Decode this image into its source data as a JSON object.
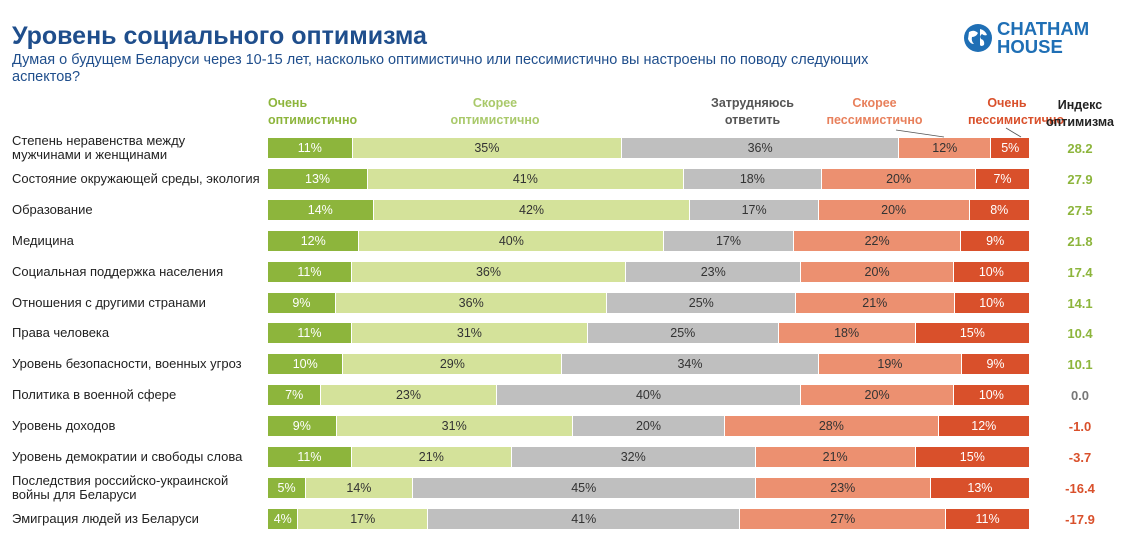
{
  "title": "Уровень социального оптимизма",
  "subtitle": "Думая о будущем Беларуси через 10-15 лет, насколько оптимистично или пессимистично вы настроены по поводу следующих аспектов?",
  "logo": {
    "line1": "CHATHAM",
    "line2": "HOUSE",
    "icon": "globe-icon",
    "color": "#1f6fb5"
  },
  "chart_data": {
    "type": "bar",
    "orientation": "horizontal",
    "stacked": true,
    "normalized": true,
    "series": [
      {
        "name": "Очень оптимистично",
        "color": "#8db53c",
        "values": [
          11,
          13,
          14,
          12,
          11,
          9,
          11,
          10,
          7,
          9,
          11,
          5,
          4
        ]
      },
      {
        "name": "Скорее оптимистично",
        "color": "#d4e29a",
        "values": [
          35,
          41,
          42,
          40,
          36,
          36,
          31,
          29,
          23,
          31,
          21,
          14,
          17
        ]
      },
      {
        "name": "Затрудняюсь ответить",
        "color": "#bfbfbf",
        "values": [
          36,
          18,
          17,
          17,
          23,
          25,
          25,
          34,
          40,
          20,
          32,
          45,
          41
        ]
      },
      {
        "name": "Скорее пессимистично",
        "color": "#ec9070",
        "values": [
          12,
          20,
          20,
          22,
          20,
          21,
          18,
          19,
          20,
          28,
          21,
          23,
          27
        ]
      },
      {
        "name": "Очень пессимистично",
        "color": "#d9502b",
        "values": [
          5,
          7,
          8,
          9,
          10,
          10,
          15,
          9,
          10,
          12,
          15,
          13,
          11
        ]
      }
    ],
    "legend_colors": [
      "#8db53c",
      "#a9c96a",
      "#555555",
      "#e8805c",
      "#d9502b"
    ],
    "categories": [
      "Степень неравенства между мужчинами и женщинами",
      "Состояние окружающей среды, экология",
      "Образование",
      "Медицина",
      "Социальная поддержка населения",
      "Отношения с другими странами",
      "Права человека",
      "Уровень безопасности, военных угроз",
      "Политика в военной сфере",
      "Уровень доходов",
      "Уровень демократии и свободы слова",
      "Последствия российско-украинской войны для Беларуси",
      "Эмиграция людей из Беларуси"
    ],
    "index_header": "Индекс оптимизма",
    "index_values": [
      "28.2",
      "27.9",
      "27.5",
      "21.8",
      "17.4",
      "14.1",
      "10.4",
      "10.1",
      "0.0",
      "-1.0",
      "-3.7",
      "-16.4",
      "-17.9"
    ],
    "index_colors": {
      "positive": "#8db53c",
      "zero": "#777777",
      "negative": "#d9502b"
    },
    "value_suffix": "%"
  }
}
